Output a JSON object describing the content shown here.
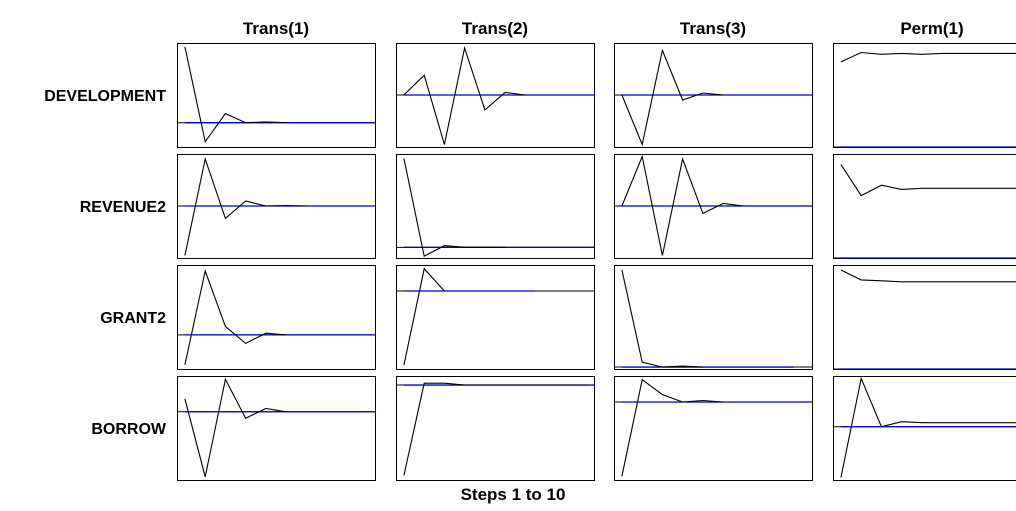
{
  "chart_data": {
    "type": "line",
    "title": "",
    "xlabel": "Steps 1 to 10",
    "columns": [
      "Trans(1)",
      "Trans(2)",
      "Trans(3)",
      "Perm(1)"
    ],
    "rows": [
      "DEVELOPMENT",
      "REVENUE2",
      "GRANT2",
      "BORROW"
    ],
    "x": [
      1,
      2,
      3,
      4,
      5,
      6,
      7,
      8,
      9,
      10
    ],
    "series_color": "#000000",
    "baseline_color": "#0000cc",
    "panels": [
      [
        {
          "values": [
            1.0,
            -0.25,
            0.12,
            0.0,
            0.01,
            0.0,
            null,
            null,
            null,
            null
          ],
          "baseline": 0,
          "ylim": [
            -0.32,
            1.05
          ]
        },
        {
          "values": [
            0.0,
            0.4,
            -1.0,
            0.95,
            -0.3,
            0.05,
            0.0,
            null,
            null,
            null
          ],
          "baseline": 0,
          "ylim": [
            -1.05,
            1.05
          ]
        },
        {
          "values": [
            0.0,
            -1.0,
            0.9,
            -0.1,
            0.04,
            0.0,
            null,
            null,
            null,
            null
          ],
          "baseline": 0,
          "ylim": [
            -1.05,
            1.05
          ]
        },
        {
          "values": [
            0.9,
            1.0,
            0.98,
            0.99,
            0.98,
            0.99,
            0.99,
            0.99,
            0.99,
            0.99
          ],
          "baseline": 0,
          "ylim": [
            0,
            1.1
          ]
        }
      ],
      [
        {
          "values": [
            -1.0,
            0.95,
            -0.25,
            0.1,
            0.0,
            0.01,
            0.0,
            null,
            null,
            null
          ],
          "baseline": 0,
          "ylim": [
            -1.05,
            1.05
          ]
        },
        {
          "values": [
            1.0,
            -0.1,
            0.02,
            0.0,
            0.0,
            0.0,
            null,
            null,
            null,
            null
          ],
          "baseline": 0,
          "ylim": [
            -0.12,
            1.05
          ]
        },
        {
          "values": [
            0.0,
            1.0,
            -1.0,
            0.95,
            -0.15,
            0.05,
            0.0,
            null,
            null,
            null
          ],
          "baseline": 0,
          "ylim": [
            -1.05,
            1.05
          ]
        },
        {
          "values": [
            0.9,
            0.6,
            0.7,
            0.66,
            0.67,
            0.67,
            0.67,
            0.67,
            0.67,
            0.67
          ],
          "baseline": 0,
          "ylim": [
            0,
            1.0
          ]
        }
      ],
      [
        {
          "values": [
            -0.35,
            0.75,
            0.1,
            -0.1,
            0.02,
            0.0,
            null,
            null,
            null,
            null
          ],
          "baseline": 0,
          "ylim": [
            -0.4,
            0.82
          ]
        },
        {
          "values": [
            -1.0,
            0.3,
            0.0,
            null,
            null,
            null,
            null,
            null,
            null,
            null
          ],
          "baseline": 0,
          "ylim": [
            -1.05,
            0.35
          ]
        },
        {
          "values": [
            1.0,
            0.05,
            0.0,
            0.01,
            0.0,
            null,
            null,
            null,
            null,
            null
          ],
          "baseline": 0,
          "ylim": [
            -0.02,
            1.05
          ]
        },
        {
          "values": [
            1.0,
            0.9,
            0.89,
            0.88,
            0.88,
            0.88,
            0.88,
            0.88,
            0.88,
            0.88
          ],
          "baseline": 0,
          "ylim": [
            0,
            1.05
          ]
        }
      ],
      [
        {
          "values": [
            0.2,
            -1.0,
            0.5,
            -0.1,
            0.05,
            0.0,
            null,
            null,
            null,
            null
          ],
          "baseline": 0,
          "ylim": [
            -1.05,
            0.55
          ]
        },
        {
          "values": [
            -1.0,
            0.02,
            0.02,
            0.0,
            0.0,
            0.0,
            0.0,
            0.0,
            0.0,
            0.0
          ],
          "baseline": 0,
          "ylim": [
            -1.05,
            0.1
          ]
        },
        {
          "values": [
            -1.0,
            0.3,
            0.1,
            0.0,
            0.02,
            0.0,
            null,
            null,
            null,
            null
          ],
          "baseline": 0,
          "ylim": [
            -1.05,
            0.35
          ]
        },
        {
          "values": [
            -1.0,
            0.95,
            0.0,
            0.1,
            0.08,
            0.08,
            0.08,
            0.08,
            0.08,
            0.08
          ],
          "baseline": 0,
          "ylim": [
            -1.05,
            1.0
          ]
        }
      ]
    ]
  }
}
